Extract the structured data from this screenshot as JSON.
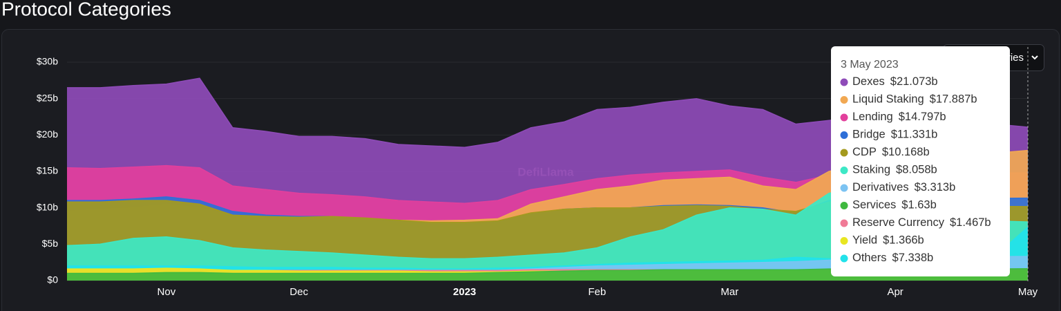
{
  "chart_data": {
    "type": "area",
    "title": "Protocol Categories",
    "watermark": "DefiLlama",
    "dropdown": "Categories",
    "categories": [
      null,
      null,
      null,
      "Nov",
      null,
      null,
      null,
      "Dec",
      null,
      null,
      null,
      null,
      "2023",
      null,
      null,
      null,
      "Feb",
      null,
      null,
      null,
      "Mar",
      null,
      null,
      null,
      null,
      "Apr",
      null,
      null,
      null,
      "May"
    ],
    "ylim": [
      0,
      30
    ],
    "yticks": [
      {
        "value": 0,
        "label": "$0"
      },
      {
        "value": 5,
        "label": "$5b"
      },
      {
        "value": 10,
        "label": "$10b"
      },
      {
        "value": 15,
        "label": "$15b"
      },
      {
        "value": 20,
        "label": "$20b"
      },
      {
        "value": 25,
        "label": "$25b"
      },
      {
        "value": 30,
        "label": "$30b"
      }
    ],
    "grid": true,
    "tooltip_date": "3 May 2023",
    "series": [
      {
        "name": "Dexes",
        "color": "#8e4bb8",
        "values": [
          26.5,
          26.5,
          26.8,
          27,
          27.8,
          21,
          20.5,
          19.8,
          19.8,
          19.5,
          18.7,
          18.5,
          18.3,
          19,
          21,
          21.8,
          23.5,
          23.8,
          24.5,
          25,
          24,
          23.5,
          21.5,
          22,
          22.5,
          23,
          23,
          22.5,
          21.5,
          21.073
        ],
        "value_labels": [
          null,
          null,
          null,
          null,
          null,
          null,
          null,
          null,
          null,
          null,
          null,
          null,
          null,
          null,
          null,
          null,
          null,
          null,
          null,
          null,
          null,
          null,
          null,
          null,
          null,
          null,
          null,
          null,
          null,
          "$21.073b"
        ]
      },
      {
        "name": "Liquid Staking",
        "color": "#f1a852",
        "values": [
          9.5,
          9.8,
          10,
          10.5,
          10,
          9,
          8.8,
          8.7,
          8.8,
          8.5,
          8.3,
          8.2,
          8.3,
          8.5,
          10.5,
          11.5,
          12.5,
          13,
          13.8,
          14,
          14.2,
          13,
          12.5,
          15,
          16,
          16.5,
          16.8,
          17.2,
          17.5,
          17.887
        ],
        "value_labels": [
          null,
          null,
          null,
          null,
          null,
          null,
          null,
          null,
          null,
          null,
          null,
          null,
          null,
          null,
          null,
          null,
          null,
          null,
          null,
          null,
          null,
          null,
          null,
          null,
          null,
          null,
          null,
          null,
          null,
          "$17.887b"
        ]
      },
      {
        "name": "Lending",
        "color": "#e23f9c",
        "values": [
          15.5,
          15.4,
          15.6,
          15.8,
          15.5,
          13,
          12.5,
          12,
          11.8,
          11.5,
          11,
          10.8,
          10.6,
          11,
          12.5,
          13.2,
          14,
          14.5,
          14.8,
          15,
          15.2,
          14.2,
          13.5,
          14.5,
          15,
          15.2,
          15,
          15,
          14.8,
          14.797
        ],
        "value_labels": [
          null,
          null,
          null,
          null,
          null,
          null,
          null,
          null,
          null,
          null,
          null,
          null,
          null,
          null,
          null,
          null,
          null,
          null,
          null,
          null,
          null,
          null,
          null,
          null,
          null,
          null,
          null,
          null,
          null,
          "$14.797b"
        ]
      },
      {
        "name": "Bridge",
        "color": "#2e6fd8",
        "values": [
          11,
          11,
          11.2,
          11.5,
          11,
          9.5,
          9,
          8.8,
          8.8,
          8.5,
          8.2,
          7.9,
          7.9,
          8.1,
          9.2,
          9.8,
          10,
          10,
          10.3,
          10.4,
          10.3,
          10,
          9.3,
          11,
          11.3,
          11.5,
          11.4,
          11.4,
          11.3,
          11.331
        ],
        "value_labels": [
          null,
          null,
          null,
          null,
          null,
          null,
          null,
          null,
          null,
          null,
          null,
          null,
          null,
          null,
          null,
          null,
          null,
          null,
          null,
          null,
          null,
          null,
          null,
          null,
          null,
          null,
          null,
          null,
          null,
          "$11.331b"
        ]
      },
      {
        "name": "CDP",
        "color": "#a49a1e",
        "values": [
          10.8,
          10.8,
          11,
          11,
          10.5,
          9,
          8.8,
          8.7,
          8.8,
          8.6,
          8.3,
          8,
          8,
          8.2,
          9.3,
          9.8,
          10,
          10,
          10.2,
          10.3,
          10.2,
          9.8,
          9.5,
          10.8,
          10.8,
          10.7,
          10.5,
          10.4,
          10.2,
          10.168
        ],
        "value_labels": [
          null,
          null,
          null,
          null,
          null,
          null,
          null,
          null,
          null,
          null,
          null,
          null,
          null,
          null,
          null,
          null,
          null,
          null,
          null,
          null,
          null,
          null,
          null,
          null,
          null,
          null,
          null,
          null,
          null,
          "$10.168b"
        ]
      },
      {
        "name": "Staking",
        "color": "#3de8c6",
        "values": [
          4.8,
          5,
          5.8,
          6,
          5.5,
          4.5,
          4.2,
          4,
          3.8,
          3.5,
          3.2,
          3,
          3,
          3.2,
          3.5,
          3.8,
          4.5,
          6,
          7,
          9,
          10,
          9.8,
          9,
          12,
          12.8,
          12,
          10,
          8.5,
          8.2,
          8.058
        ],
        "value_labels": [
          null,
          null,
          null,
          null,
          null,
          null,
          null,
          null,
          null,
          null,
          null,
          null,
          null,
          null,
          null,
          null,
          null,
          null,
          null,
          null,
          null,
          null,
          null,
          null,
          null,
          null,
          null,
          null,
          null,
          "$8.058b"
        ]
      },
      {
        "name": "Derivatives",
        "color": "#7cc3f2",
        "values": [
          1.2,
          1.2,
          1.3,
          1.3,
          1.3,
          1.2,
          1.2,
          1.2,
          1.2,
          1.2,
          1.2,
          1.2,
          1.3,
          1.4,
          1.6,
          1.8,
          2,
          2.1,
          2.2,
          2.3,
          2.4,
          2.5,
          2.6,
          2.8,
          2.9,
          3,
          3.1,
          3.2,
          3.3,
          3.313
        ],
        "value_labels": [
          null,
          null,
          null,
          null,
          null,
          null,
          null,
          null,
          null,
          null,
          null,
          null,
          null,
          null,
          null,
          null,
          null,
          null,
          null,
          null,
          null,
          null,
          null,
          null,
          null,
          null,
          null,
          null,
          null,
          "$3.313b"
        ]
      },
      {
        "name": "Services",
        "color": "#3fb93f",
        "values": [
          1,
          1,
          1,
          1.1,
          1.1,
          1,
          1,
          1,
          1,
          1,
          1,
          1,
          1,
          1.1,
          1.2,
          1.3,
          1.4,
          1.4,
          1.5,
          1.5,
          1.5,
          1.5,
          1.5,
          1.6,
          1.6,
          1.6,
          1.6,
          1.6,
          1.6,
          1.63
        ],
        "value_labels": [
          null,
          null,
          null,
          null,
          null,
          null,
          null,
          null,
          null,
          null,
          null,
          null,
          null,
          null,
          null,
          null,
          null,
          null,
          null,
          null,
          null,
          null,
          null,
          null,
          null,
          null,
          null,
          null,
          null,
          "$1.63b"
        ]
      },
      {
        "name": "Reserve Currency",
        "color": "#f07a96",
        "values": [
          1.5,
          1.5,
          1.5,
          1.5,
          1.5,
          1.4,
          1.4,
          1.4,
          1.4,
          1.4,
          1.4,
          1.4,
          1.4,
          1.4,
          1.5,
          1.5,
          1.5,
          1.5,
          1.5,
          1.5,
          1.5,
          1.5,
          1.5,
          1.5,
          1.5,
          1.5,
          1.5,
          1.5,
          1.5,
          1.467
        ],
        "value_labels": [
          null,
          null,
          null,
          null,
          null,
          null,
          null,
          null,
          null,
          null,
          null,
          null,
          null,
          null,
          null,
          null,
          null,
          null,
          null,
          null,
          null,
          null,
          null,
          null,
          null,
          null,
          null,
          null,
          null,
          "$1.467b"
        ]
      },
      {
        "name": "Yield",
        "color": "#e8e621",
        "values": [
          1.6,
          1.6,
          1.6,
          1.7,
          1.6,
          1.4,
          1.4,
          1.3,
          1.3,
          1.3,
          1.3,
          1.2,
          1.2,
          1.2,
          1.3,
          1.3,
          1.4,
          1.4,
          1.4,
          1.4,
          1.4,
          1.4,
          1.4,
          1.4,
          1.4,
          1.4,
          1.4,
          1.4,
          1.4,
          1.366
        ],
        "value_labels": [
          null,
          null,
          null,
          null,
          null,
          null,
          null,
          null,
          null,
          null,
          null,
          null,
          null,
          null,
          null,
          null,
          null,
          null,
          null,
          null,
          null,
          null,
          null,
          null,
          null,
          null,
          null,
          null,
          null,
          "$1.366b"
        ]
      },
      {
        "name": "Others",
        "color": "#22e2ea",
        "values": [
          2,
          2,
          2,
          2,
          2,
          1.9,
          1.8,
          1.8,
          1.8,
          1.7,
          1.7,
          1.6,
          1.6,
          1.7,
          1.8,
          2,
          2.2,
          2.4,
          2.5,
          2.6,
          2.7,
          2.8,
          3.2,
          3,
          3.2,
          3.5,
          3.5,
          3.3,
          3.3,
          7.338
        ],
        "value_labels": [
          null,
          null,
          null,
          null,
          null,
          null,
          null,
          null,
          null,
          null,
          null,
          null,
          null,
          null,
          null,
          null,
          null,
          null,
          null,
          null,
          null,
          null,
          null,
          null,
          null,
          null,
          null,
          null,
          null,
          "$7.338b"
        ]
      }
    ]
  }
}
